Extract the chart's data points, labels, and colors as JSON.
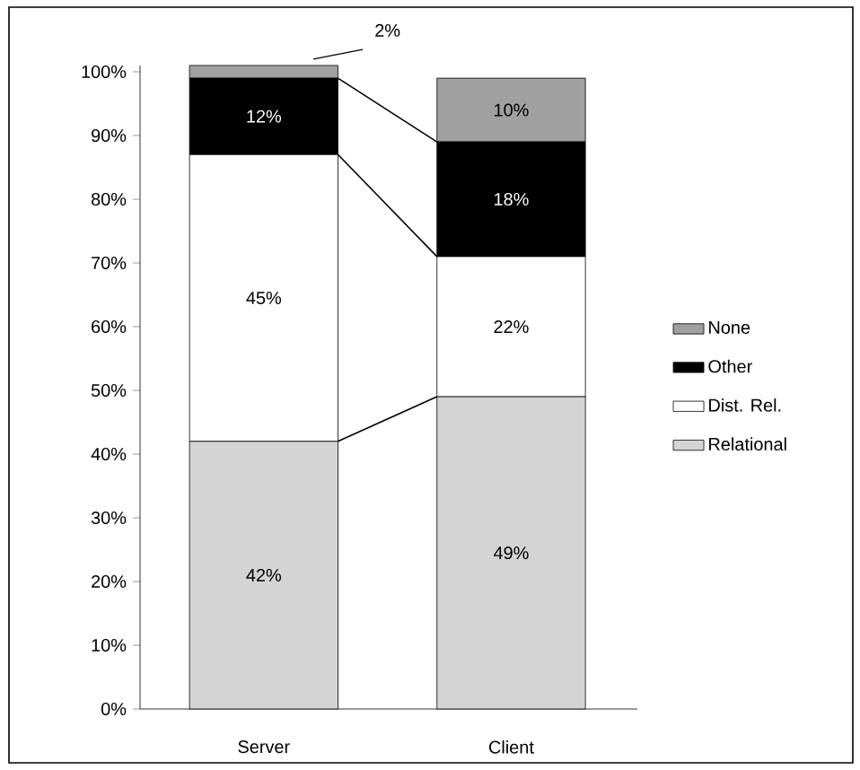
{
  "chart_data": {
    "type": "bar",
    "stacked": true,
    "categories": [
      "Server",
      "Client"
    ],
    "series": [
      {
        "name": "Relational",
        "color": "#d4d4d4",
        "values": [
          42,
          49
        ],
        "value_labels": [
          "42%",
          "49%"
        ]
      },
      {
        "name": "Dist. Rel.",
        "color": "#ffffff",
        "values": [
          45,
          22
        ],
        "value_labels": [
          "45%",
          "22%"
        ]
      },
      {
        "name": "Other",
        "color": "#000000",
        "values": [
          12,
          18
        ],
        "value_labels": [
          "12%",
          "18%"
        ]
      },
      {
        "name": "None",
        "color": "#a0a0a0",
        "values": [
          2,
          10
        ],
        "value_labels": [
          "2%",
          "10%"
        ]
      }
    ],
    "ylim": [
      0,
      101
    ],
    "yticks": [
      {
        "value": 0,
        "label": "0%"
      },
      {
        "value": 10,
        "label": "10%"
      },
      {
        "value": 20,
        "label": "20%"
      },
      {
        "value": 30,
        "label": "30%"
      },
      {
        "value": 40,
        "label": "40%"
      },
      {
        "value": 50,
        "label": "50%"
      },
      {
        "value": 60,
        "label": "60%"
      },
      {
        "value": 70,
        "label": "70%"
      },
      {
        "value": 80,
        "label": "80%"
      },
      {
        "value": 90,
        "label": "90%"
      },
      {
        "value": 100,
        "label": "100%"
      }
    ],
    "grid": false,
    "legend": "right"
  }
}
